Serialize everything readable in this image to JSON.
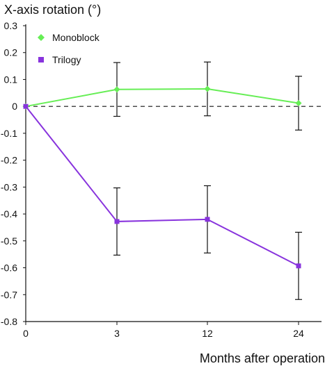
{
  "chart_data": {
    "type": "line",
    "title": "",
    "ylabel": "X-axis rotation (°)",
    "xlabel": "Months after operation",
    "categories": [
      "0",
      "3",
      "12",
      "24"
    ],
    "ylim": [
      -0.8,
      0.3
    ],
    "yticks": [
      0.3,
      0.2,
      0.1,
      0,
      -0.1,
      -0.2,
      -0.3,
      -0.4,
      -0.5,
      -0.6,
      -0.7,
      -0.8
    ],
    "ytick_labels": [
      "0.3",
      "0.2",
      "0.1",
      "0",
      "-0.1",
      "-0.2",
      "-0.3",
      "-0.4",
      "-0.5",
      "-0.6",
      "-0.7",
      "-0.8"
    ],
    "zero_line": "dashed",
    "legend_position": "top-left",
    "grid": false,
    "series": [
      {
        "name": "Monoblock",
        "color": "#66ee55",
        "marker": "diamond",
        "values": [
          0,
          0.063,
          0.065,
          0.012
        ],
        "errors": [
          null,
          0.1,
          0.1,
          0.1
        ]
      },
      {
        "name": "Trilogy",
        "color": "#8833dd",
        "marker": "square",
        "values": [
          0,
          -0.428,
          -0.42,
          -0.593
        ],
        "errors": [
          null,
          0.125,
          0.125,
          0.125
        ]
      }
    ]
  }
}
